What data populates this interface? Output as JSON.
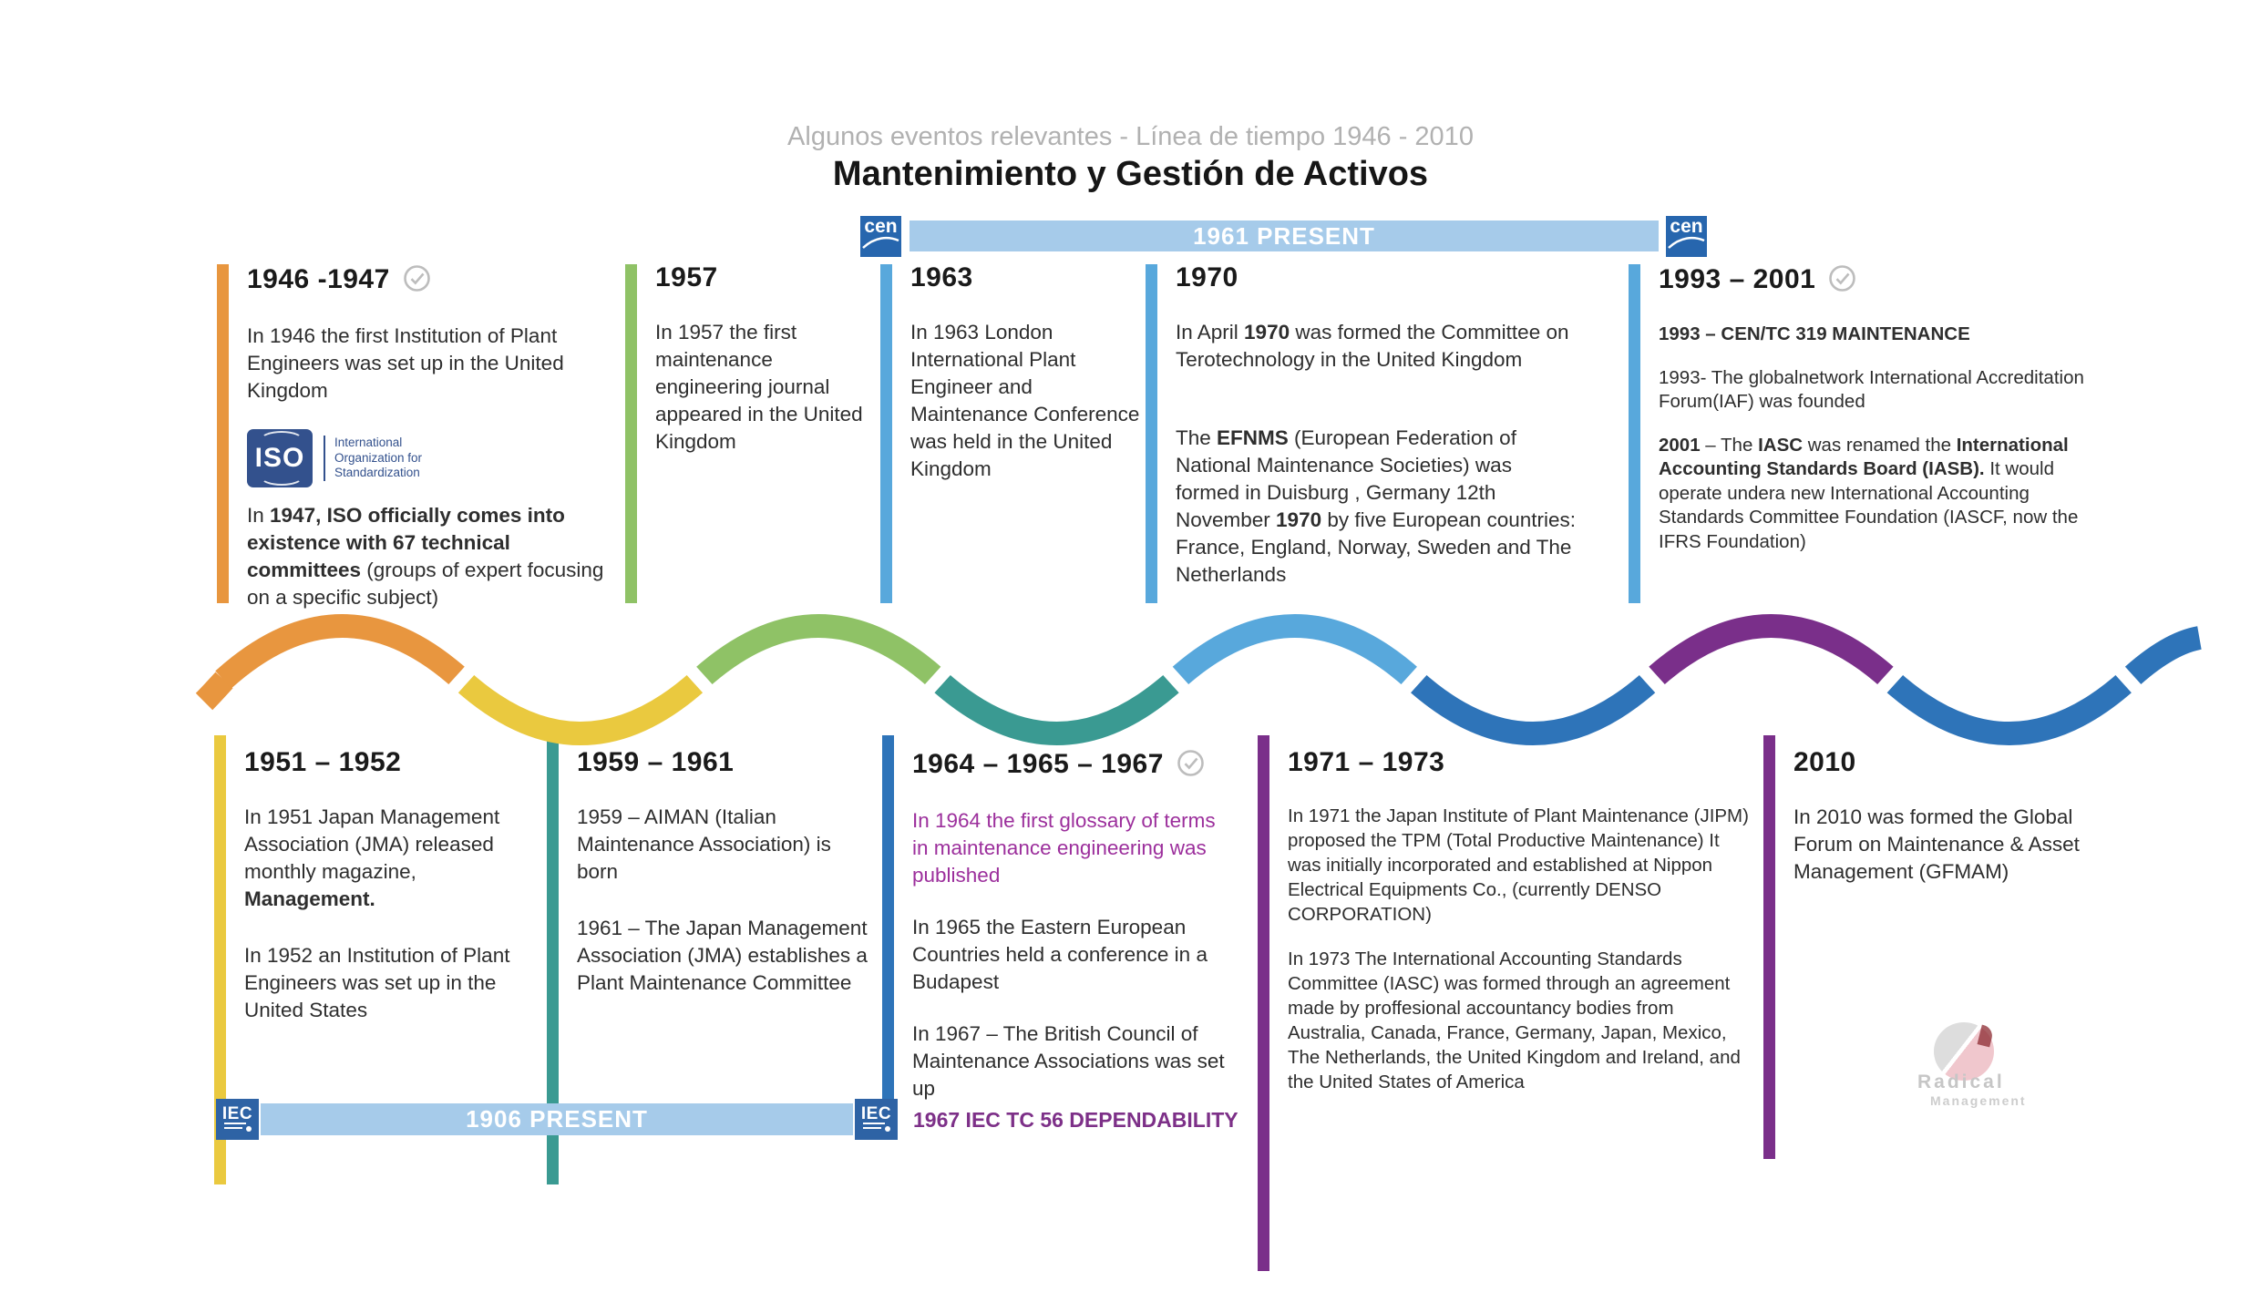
{
  "header": {
    "subtitle": "Algunos eventos relevantes - Línea de tiempo 1946 - 2010",
    "title": "Mantenimiento y Gestión de Activos"
  },
  "banners": {
    "cen": {
      "logo_text": "cen",
      "label": "1961 PRESENT"
    },
    "iec": {
      "logo_text": "IEC",
      "label": "1906 PRESENT",
      "side_note": "1967 IEC TC 56 DEPENDABILITY"
    }
  },
  "iso_logo": {
    "text": "ISO",
    "caption_lines": [
      "International",
      "Organization for",
      "Standardization"
    ]
  },
  "watermark": {
    "line1": "Radical",
    "line2": "Management"
  },
  "colors": {
    "orange": "#e8963f",
    "yellow": "#eac93f",
    "green": "#8fc266",
    "teal": "#3a9a92",
    "light_blue": "#58a8dc",
    "medium_blue": "#2e74b9",
    "purple": "#7a2f8a",
    "banner_blue": "#a6cbea",
    "magenta_text": "#9c2f9c",
    "note_purple": "#7d3088",
    "check_gray": "#bdbdbd"
  },
  "wave": {
    "segment_colors": [
      "#e8963f",
      "#eac93f",
      "#8fc266",
      "#3a9a92",
      "#58a8dc",
      "#2e74b9",
      "#7a2f8a",
      "#2e74b9"
    ],
    "tail_color": "#2e74b9"
  },
  "timeline": {
    "top": [
      {
        "id": "1946-1947",
        "year": "1946 -1947",
        "check": true,
        "bar_color": "#e8963f",
        "paragraphs": [
          {
            "runs": [
              {
                "t": "In 1946 the first Institution of Plant Engineers was set up in the United Kingdom",
                "b": false
              }
            ]
          },
          {
            "iso": true
          },
          {
            "runs": [
              {
                "t": "In ",
                "b": false
              },
              {
                "t": "1947, ISO officially comes into existence with 67 technical committees",
                "b": true
              },
              {
                "t": " (groups of expert focusing on a specific subject)",
                "b": false
              }
            ]
          }
        ]
      },
      {
        "id": "1957",
        "year": "1957",
        "check": false,
        "bar_color": "#8fc266",
        "paragraphs": [
          {
            "runs": [
              {
                "t": "In 1957 the first maintenance engineering journal appeared in the United Kingdom",
                "b": false
              }
            ]
          }
        ]
      },
      {
        "id": "1963",
        "year": "1963",
        "check": false,
        "bar_color": "#58a8dc",
        "paragraphs": [
          {
            "runs": [
              {
                "t": "In 1963 London International Plant Engineer and Maintenance Conference was held in the United Kingdom",
                "b": false
              }
            ]
          }
        ]
      },
      {
        "id": "1970",
        "year": "1970",
        "check": false,
        "bar_color": "#58a8dc",
        "paragraphs": [
          {
            "runs": [
              {
                "t": "In April ",
                "b": false
              },
              {
                "t": "1970",
                "b": true
              },
              {
                "t": " was formed the Committee on Terotechnology in the United Kingdom",
                "b": false
              }
            ]
          },
          {
            "runs": [
              {
                "t": "The ",
                "b": false
              },
              {
                "t": "EFNMS",
                "b": true
              },
              {
                "t": " (European Federation of National Maintenance Societies) was formed in Duisburg , Germany 12th November ",
                "b": false
              },
              {
                "t": "1970",
                "b": true
              },
              {
                "t": " by five European countries: France, England, Norway, Sweden and The Netherlands",
                "b": false
              }
            ]
          }
        ]
      },
      {
        "id": "1993-2001",
        "year": "1993 – 2001",
        "check": true,
        "bar_color": "#58a8dc",
        "paragraphs": [
          {
            "runs": [
              {
                "t": "1993 – CEN/TC 319 MAINTENANCE",
                "b": true
              }
            ]
          },
          {
            "runs": [
              {
                "t": "1993- The globalnetwork International Accreditation Forum(IAF) was founded",
                "b": false
              }
            ]
          },
          {
            "runs": [
              {
                "t": "2001",
                "b": true
              },
              {
                "t": " – The ",
                "b": false
              },
              {
                "t": "IASC",
                "b": true
              },
              {
                "t": " was renamed the ",
                "b": false
              },
              {
                "t": "International Accounting Standards Board (IASB).",
                "b": true
              },
              {
                "t": " It would operate undera new International Accounting Standards Committee Foundation (IASCF, now the IFRS Foundation)",
                "b": false
              }
            ]
          }
        ]
      }
    ],
    "bottom": [
      {
        "id": "1951-1952",
        "year": "1951 – 1952",
        "check": false,
        "bar_color": "#eac93f",
        "paragraphs": [
          {
            "runs": [
              {
                "t": "In 1951 Japan Management Association (JMA) released monthly magazine, ",
                "b": false
              },
              {
                "t": "Management.",
                "b": true
              }
            ]
          },
          {
            "runs": [
              {
                "t": "In 1952 an Institution of Plant Engineers was set up in the United States",
                "b": false
              }
            ]
          }
        ]
      },
      {
        "id": "1959-1961",
        "year": "1959 – 1961",
        "check": false,
        "bar_color": "#3a9a92",
        "paragraphs": [
          {
            "runs": [
              {
                "t": "1959 – AIMAN (Italian Maintenance Association) is born",
                "b": false
              }
            ]
          },
          {
            "runs": [
              {
                "t": "1961 – The Japan Management Association (JMA) establishes a Plant Maintenance Committee",
                "b": false
              }
            ]
          }
        ]
      },
      {
        "id": "1964-1965-1967",
        "year": "1964 – 1965 – 1967",
        "check": true,
        "bar_color": "#2e74b9",
        "paragraphs": [
          {
            "color": "#9c2f9c",
            "runs": [
              {
                "t": "In 1964 the first glossary of terms in maintenance engineering was published",
                "b": false
              }
            ]
          },
          {
            "runs": [
              {
                "t": "In 1965 the Eastern European Countries held a conference in a Budapest",
                "b": false
              }
            ]
          },
          {
            "runs": [
              {
                "t": "In 1967 – The British Council of Maintenance Associations was set up",
                "b": false
              }
            ]
          }
        ]
      },
      {
        "id": "1971-1973",
        "year": "1971 – 1973",
        "check": false,
        "bar_color": "#7a2f8a",
        "paragraphs": [
          {
            "runs": [
              {
                "t": "In 1971 the Japan Institute of Plant Maintenance (JIPM) proposed the TPM (Total Productive Maintenance)  It was initially incorporated and established at Nippon Electrical Equipments Co., (currently DENSO CORPORATION)",
                "b": false
              }
            ]
          },
          {
            "runs": [
              {
                "t": "In 1973 The International Accounting Standards Committee (IASC) was formed  through an agreement made by proffesional accountancy bodies from Australia, Canada, France, Germany, Japan, Mexico, The Netherlands, the United Kingdom and Ireland, and the United States of America",
                "b": false
              }
            ]
          }
        ]
      },
      {
        "id": "2010",
        "year": "2010",
        "check": false,
        "bar_color": "#7a2f8a",
        "paragraphs": [
          {
            "runs": [
              {
                "t": "In 2010 was formed the Global Forum on Maintenance & Asset Management (GFMAM)",
                "b": false
              }
            ]
          }
        ]
      }
    ]
  }
}
